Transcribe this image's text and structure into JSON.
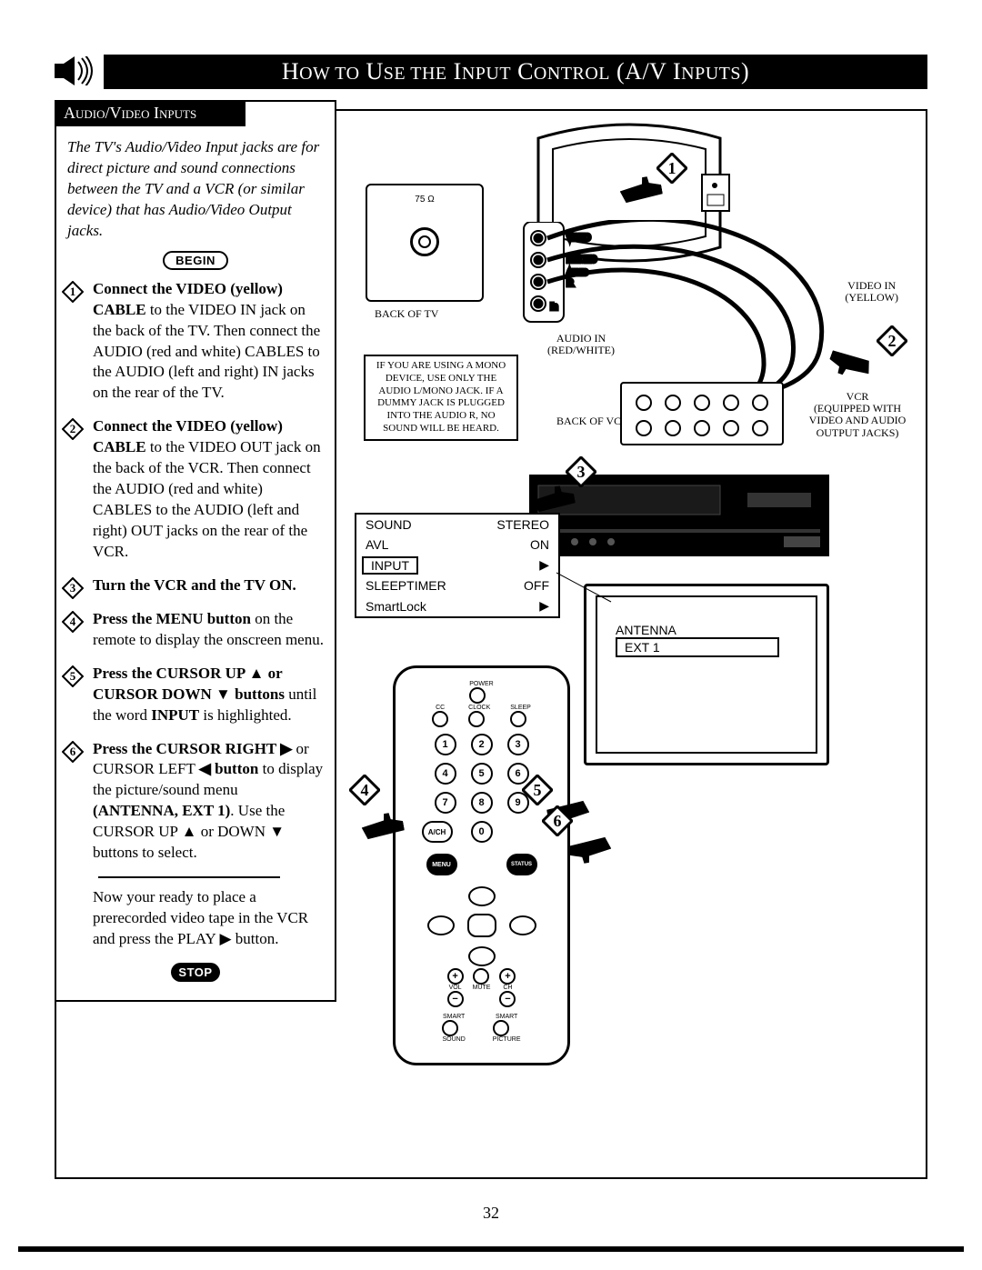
{
  "title_html": "H<span style='font-size:20px'>OW TO</span> U<span style='font-size:20px'>SE THE</span> I<span style='font-size:20px'>NPUT</span> C<span style='font-size:20px'>ONTROL</span> (A/V I<span style='font-size:20px'>NPUTS</span>)",
  "section_header": "Audio/Video Inputs",
  "intro": "The TV's Audio/Video Input jacks are for direct picture and sound connections between the TV and a VCR (or similar device) that has Audio/Video Output jacks.",
  "begin_label": "BEGIN",
  "steps": [
    {
      "n": 1,
      "html": "<b>Connect the VIDEO (yellow) CABLE</b> to the VIDEO IN jack on the back of the TV. Then connect the AUDIO (red and white) CABLES to the AUDIO (left and right) IN jacks on the rear of the TV."
    },
    {
      "n": 2,
      "html": "<b>Connect the VIDEO (yellow) CABLE</b> to the VIDEO OUT jack on the back of the VCR. Then connect the AUDIO (red and white) CABLES to the AUDIO (left and right) OUT jacks on the rear of the VCR."
    },
    {
      "n": 3,
      "html": "<b>Turn the VCR and the TV ON.</b>"
    },
    {
      "n": 4,
      "html": "<b>Press the MENU button</b> on the remote to display the onscreen menu."
    },
    {
      "n": 5,
      "html": "<b>Press the CURSOR UP ▲ or CURSOR DOWN ▼ buttons</b> until the word <b>INPUT</b> is highlighted."
    },
    {
      "n": 6,
      "html": "<b>Press the CURSOR RIGHT ▶</b> or CURSOR LEFT <b>◀ button</b> to display the picture/sound menu <b>(ANTENNA, EXT 1)</b>. Use the CURSOR UP ▲ or DOWN ▼ buttons to select."
    }
  ],
  "closing": "Now your ready to place a prerecorded video tape in the VCR and press the PLAY ▶ button.",
  "stop_label": "STOP",
  "labels": {
    "back_of_tv": "BACK OF TV",
    "ohm": "75 Ω",
    "video_in": "VIDEO IN\n(YELLOW)",
    "audio_in": "AUDIO IN\n(RED/WHITE)",
    "back_of_vcr": "BACK OF VCR",
    "vcr": "VCR\n(EQUIPPED WITH\nVIDEO AND AUDIO\nOUTPUT JACKS)",
    "note": "IF YOU ARE USING A MONO DEVICE, USE ONLY THE AUDIO L/MONO JACK. IF A DUMMY JACK IS PLUGGED INTO THE AUDIO R, NO SOUND WILL BE HEARD."
  },
  "osd": {
    "rows": [
      {
        "label": "SOUND",
        "value": "STEREO"
      },
      {
        "label": "AVL",
        "value": "ON"
      },
      {
        "label": "INPUT",
        "value": "▶",
        "selected": true
      },
      {
        "label": "SLEEPTIMER",
        "value": "OFF"
      },
      {
        "label": "SmartLock",
        "value": "▶"
      }
    ]
  },
  "tv_small": {
    "antenna": "ANTENNA",
    "ext1": "EXT 1"
  },
  "remote": {
    "power": "POWER",
    "cc": "CC",
    "clock": "CLOCK",
    "sleep": "SLEEP",
    "ach": "A/CH",
    "menu": "MENU",
    "status": "STATUS",
    "vol": "VOL",
    "ch": "CH",
    "mute": "MUTE",
    "smart_sound": "SMART",
    "sound": "SOUND",
    "smart_picture": "SMART",
    "picture": "PICTURE"
  },
  "page_number": "32",
  "colors": {
    "black": "#000000",
    "white": "#ffffff"
  }
}
